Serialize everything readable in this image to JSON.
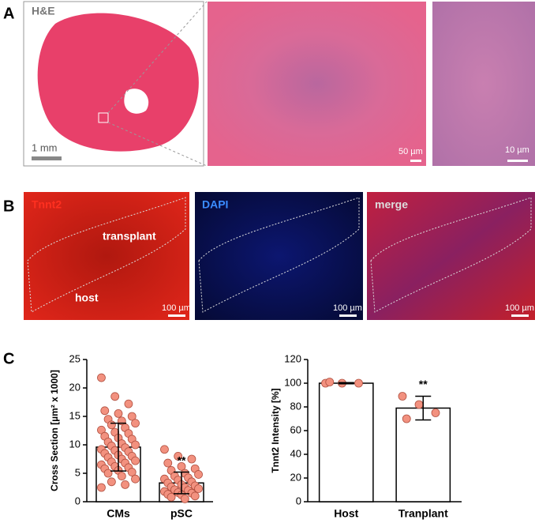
{
  "figure": {
    "panel_a": {
      "letter": "A",
      "stain": "H&E",
      "scale_1": "1 mm",
      "scale_2": "50 µm",
      "scale_3": "10 µm"
    },
    "panel_b": {
      "letter": "B",
      "channel_1": "Tnnt2",
      "channel_2": "DAPI",
      "channel_3": "merge",
      "region_1": "transplant",
      "region_2": "host",
      "scale_1": "100 µm",
      "scale_2": "100 µm",
      "scale_3": "100 µm"
    },
    "panel_c": {
      "letter": "C"
    }
  },
  "chart_data": [
    {
      "type": "bar",
      "ylabel": "Cross Section [µm² x 1000]",
      "categories": [
        "CMs",
        "pSC"
      ],
      "values": [
        9.6,
        3.3
      ],
      "errors": [
        4.2,
        1.9
      ],
      "annotation": "**",
      "color": "#ffffff",
      "point_color": "#f2917f",
      "points": [
        [
          21.8,
          18.5,
          17.2,
          16.0,
          15.5,
          15.0,
          14.5,
          14.2,
          13.8,
          13.5,
          13.0,
          12.6,
          12.2,
          12.0,
          11.5,
          11.2,
          11.0,
          10.5,
          10.2,
          10.0,
          9.8,
          9.5,
          9.2,
          9.0,
          8.8,
          8.5,
          8.2,
          8.0,
          7.8,
          7.5,
          7.2,
          7.0,
          6.8,
          6.5,
          6.2,
          6.0,
          5.8,
          5.5,
          5.2,
          5.0,
          4.5,
          4.0,
          3.5,
          3.0,
          2.5
        ],
        [
          9.2,
          8.0,
          7.5,
          6.8,
          6.2,
          5.8,
          5.5,
          5.0,
          4.8,
          4.5,
          4.2,
          4.0,
          3.8,
          3.5,
          3.3,
          3.0,
          2.8,
          2.6,
          2.5,
          2.3,
          2.1,
          2.0,
          1.8,
          1.6,
          1.5,
          1.3,
          1.2,
          1.0,
          0.8,
          0.5
        ]
      ],
      "ylim": [
        0,
        25
      ],
      "yticks": [
        0,
        5,
        10,
        15,
        20,
        25
      ]
    },
    {
      "type": "bar",
      "ylabel": "Tnnt2 Intensity [%]",
      "categories": [
        "Host",
        "Tranplant"
      ],
      "values": [
        100,
        79
      ],
      "errors": [
        0.5,
        10
      ],
      "annotation": "**",
      "color": "#ffffff",
      "point_color": "#f2917f",
      "points": [
        [
          100,
          100,
          100,
          101
        ],
        [
          89,
          82,
          75,
          70
        ]
      ],
      "ylim": [
        0,
        120
      ],
      "yticks": [
        0,
        20,
        40,
        60,
        80,
        100,
        120
      ]
    }
  ]
}
